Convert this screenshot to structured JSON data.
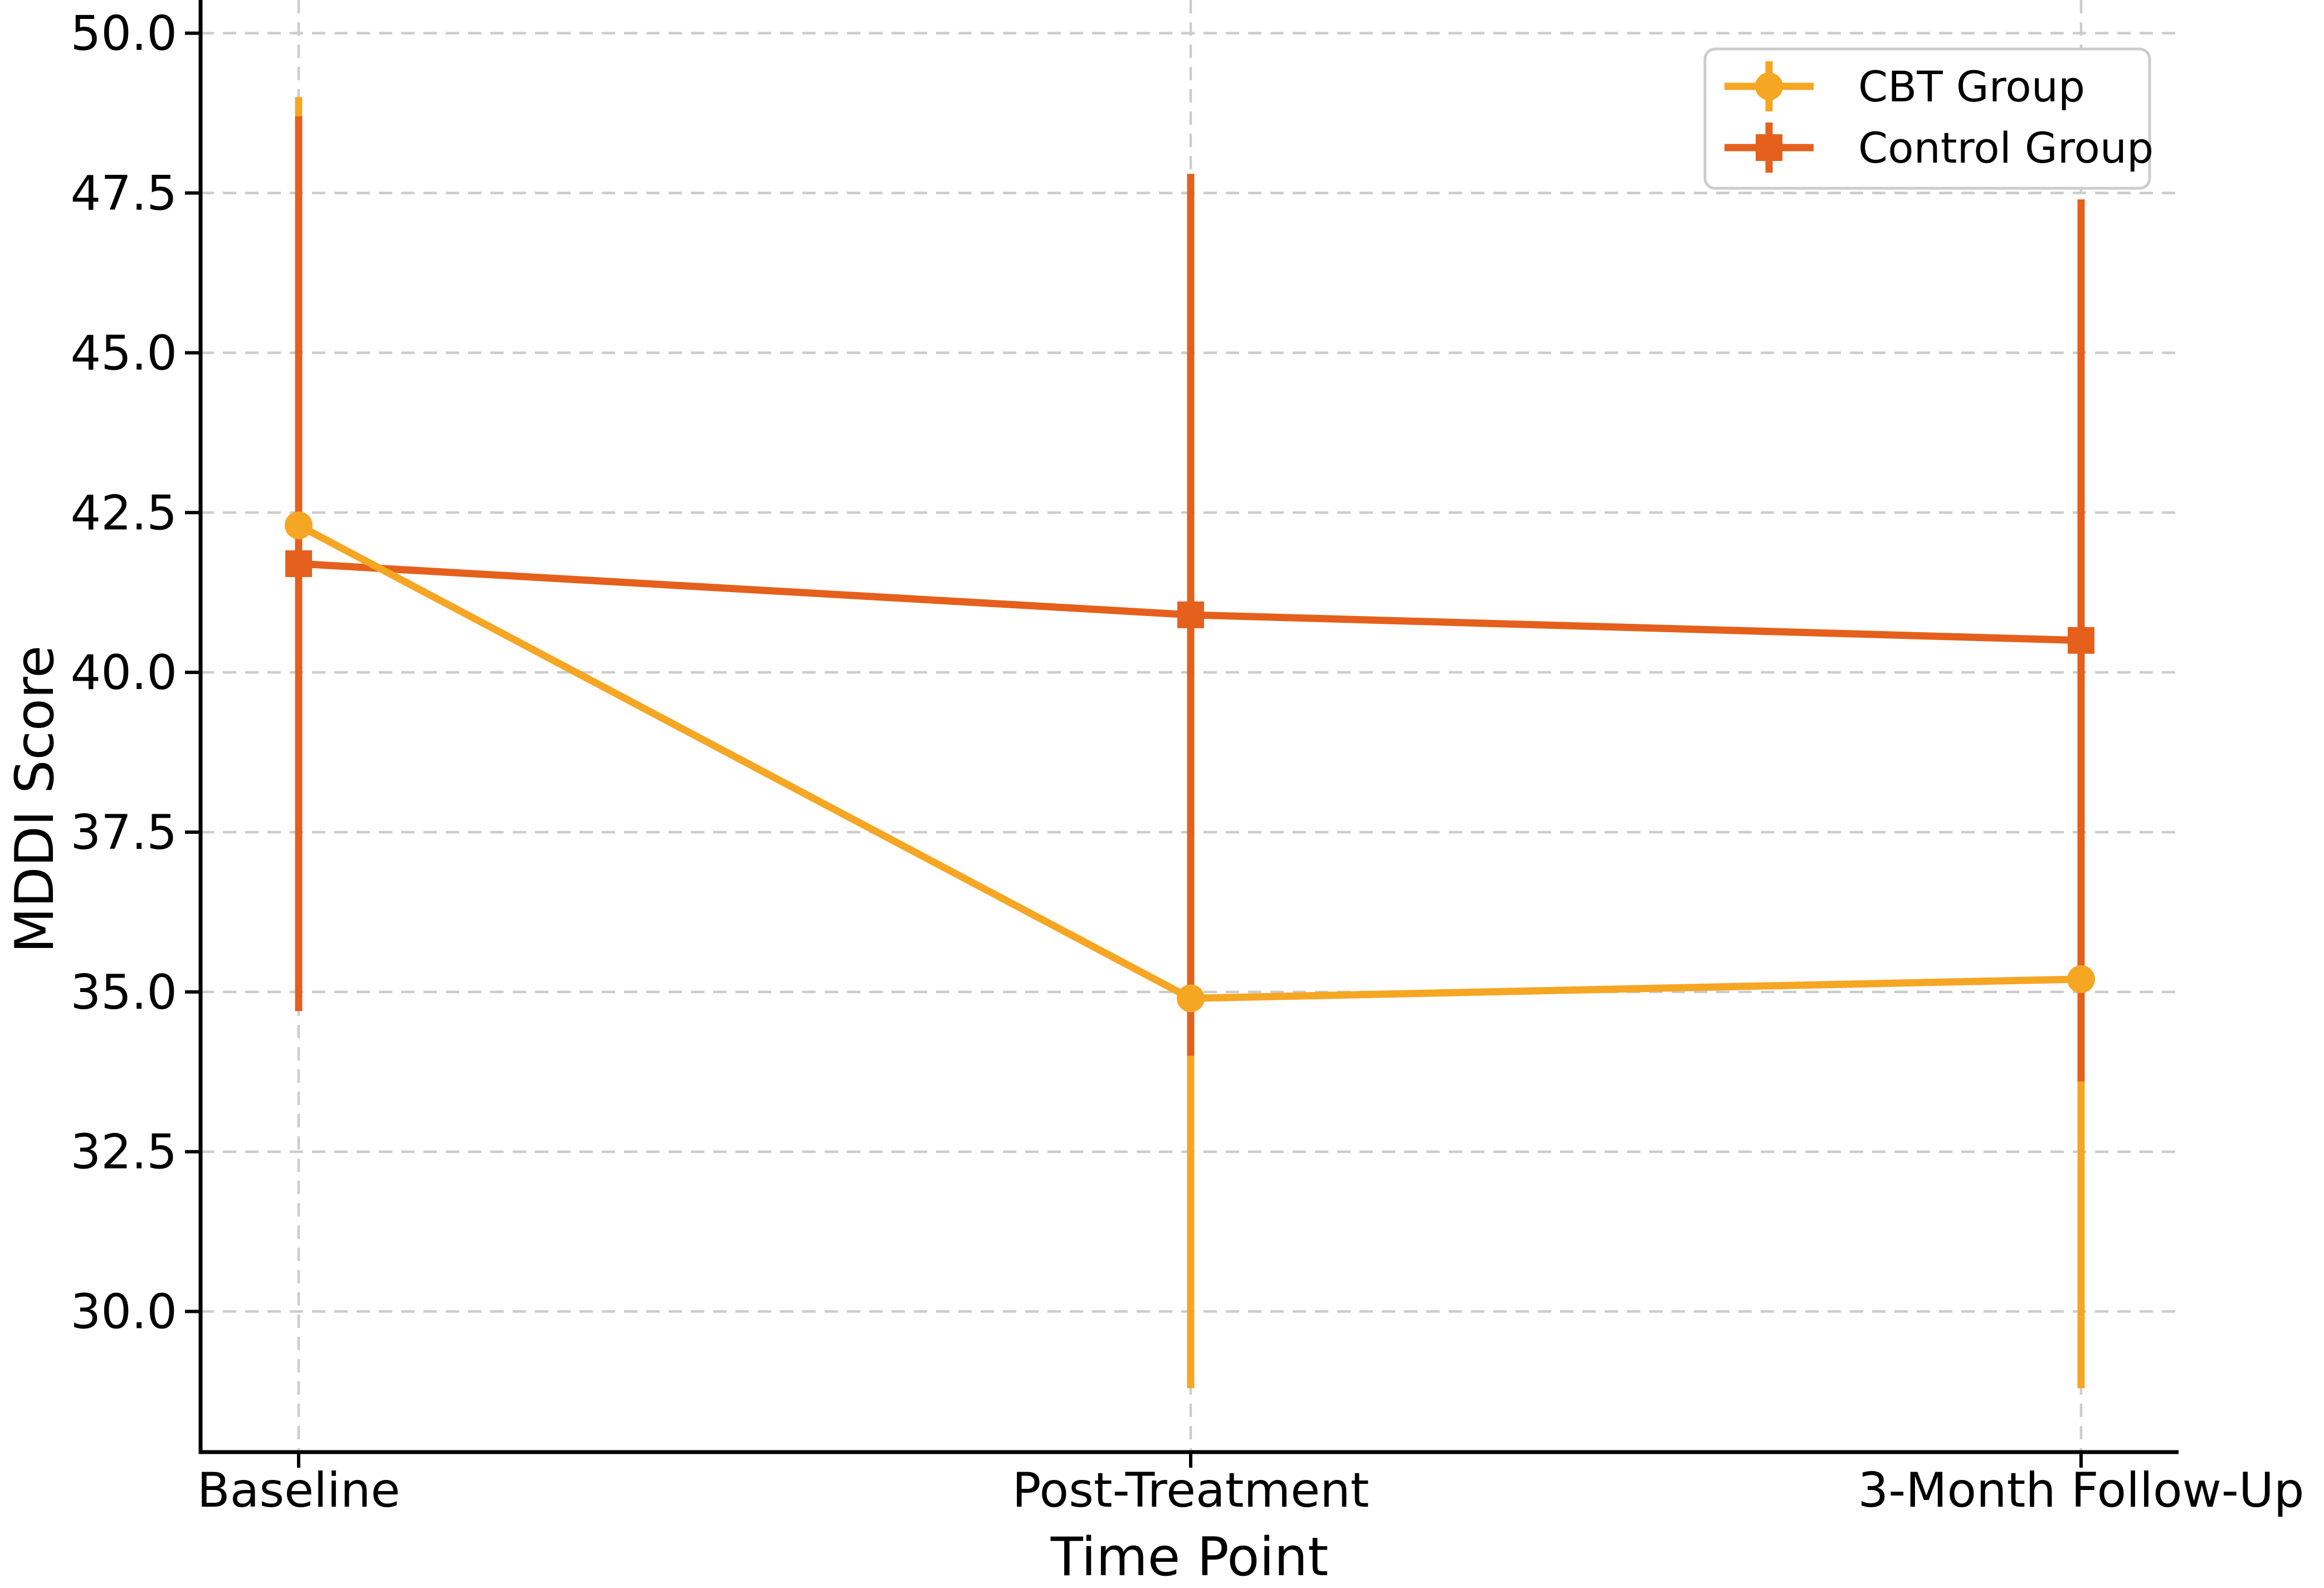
{
  "chart_data": {
    "type": "line",
    "title": "",
    "xlabel": "Time Point",
    "ylabel": "MDDI Score",
    "categories": [
      "Baseline",
      "Post-Treatment",
      "3-Month Follow-Up"
    ],
    "series": [
      {
        "name": "CBT Group",
        "color": "#F5A623",
        "marker": "circle",
        "values": [
          42.3,
          34.9,
          35.2
        ],
        "errors": [
          6.7,
          6.1,
          6.4
        ]
      },
      {
        "name": "Control Group",
        "color": "#E4601C",
        "marker": "square",
        "values": [
          41.7,
          40.9,
          40.5
        ],
        "errors": [
          7.0,
          6.9,
          6.9
        ]
      }
    ],
    "y_tick_values": [
      50.0,
      47.5,
      45.0,
      42.5,
      40.0,
      37.5,
      35.0,
      32.5,
      30.0
    ],
    "y_tick_labels": [
      "50.0",
      "47.5",
      "45.0",
      "42.5",
      "40.0",
      "37.5",
      "35.0",
      "32.5",
      "30.0"
    ],
    "ylim": [
      27.8,
      50.52
    ],
    "grid": true,
    "grid_color": "#cccccc",
    "axis_color": "#000000",
    "background_color": "#ffffff",
    "legend": {
      "position": "upper right",
      "entries": [
        "CBT Group",
        "Control Group"
      ]
    }
  }
}
